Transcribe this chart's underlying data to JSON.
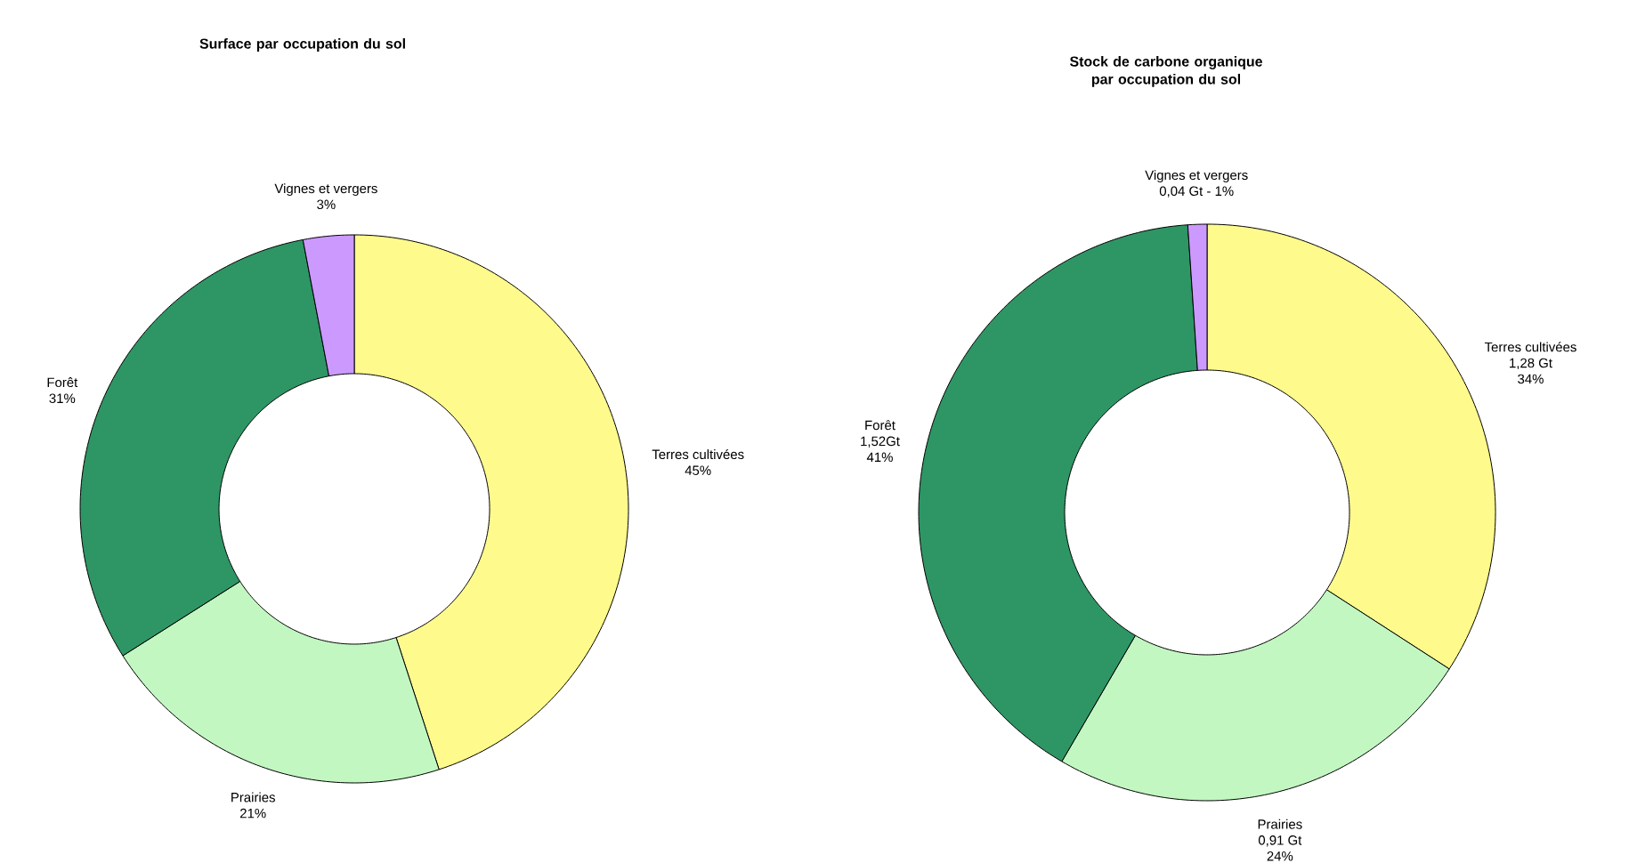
{
  "chart_data": [
    {
      "type": "donut",
      "title": "Surface par occupation du sol",
      "categories": [
        "Terres cultivées",
        "Prairies",
        "Forêt",
        "Vignes et vergers"
      ],
      "values": [
        45,
        21,
        31,
        3
      ],
      "value_labels": [
        "45%",
        "21%",
        "31%",
        "3%"
      ],
      "colors": [
        "#fffa8c",
        "#c2f7c2",
        "#2e9664",
        "#cc99ff"
      ]
    },
    {
      "type": "donut",
      "title": "Stock de carbone organique par occupation du sol",
      "categories": [
        "Terres cultivées",
        "Prairies",
        "Forêt",
        "Vignes et vergers"
      ],
      "values": [
        1.28,
        0.91,
        1.52,
        0.04
      ],
      "value_labels": [
        "1,28 Gt",
        "0,91 Gt",
        "1,52Gt",
        "0,04 Gt - 1%"
      ],
      "annotations": [
        "34%",
        "24%",
        "41%"
      ],
      "colors": [
        "#fffa8c",
        "#c2f7c2",
        "#2e9664",
        "#cc99ff"
      ]
    }
  ]
}
